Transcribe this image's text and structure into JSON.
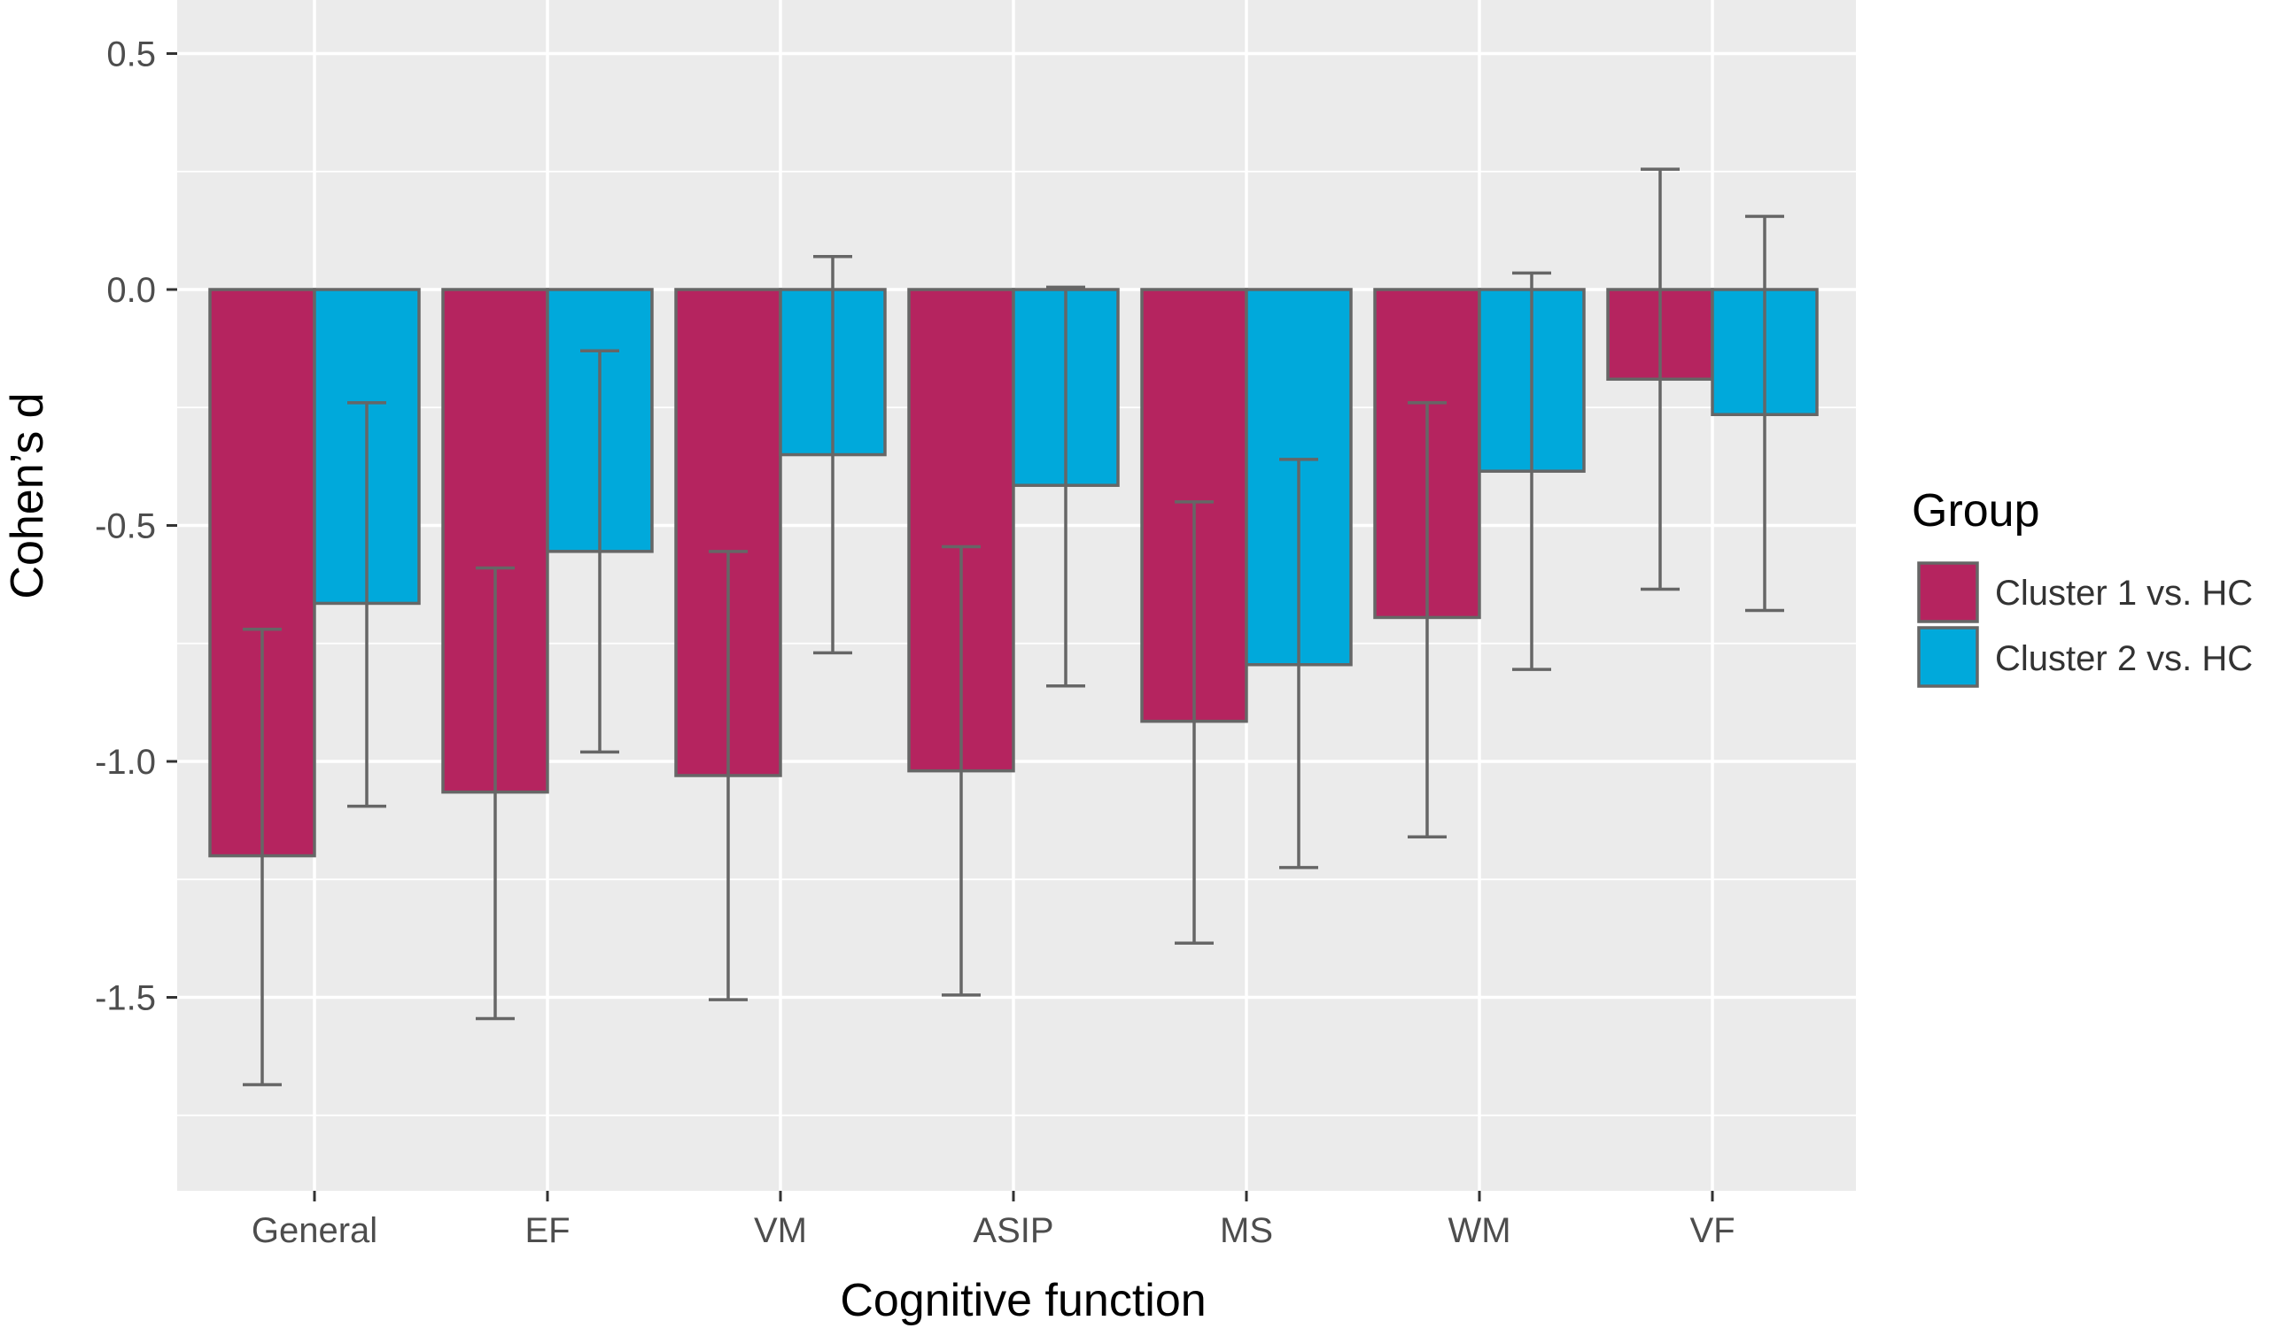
{
  "chart_data": {
    "type": "bar",
    "title": "",
    "xlabel": "Cognitive function",
    "ylabel": "Cohen’s d",
    "ylim": [
      -1.9,
      0.6
    ],
    "yticks": [
      0.5,
      0.0,
      -0.5,
      -1.0,
      -1.5
    ],
    "ytick_labels": [
      "0.5",
      "0.0",
      "-0.5",
      "-1.0",
      "-1.5"
    ],
    "grid": true,
    "categories": [
      "General",
      "EF",
      "VM",
      "ASIP",
      "MS",
      "WM",
      "VF"
    ],
    "series": [
      {
        "name": "Cluster 1 vs. HC",
        "color": "#B5245F",
        "values": [
          -1.2,
          -1.065,
          -1.03,
          -1.02,
          -0.915,
          -0.695,
          -0.19
        ],
        "ci_lower": [
          -1.685,
          -1.545,
          -1.505,
          -1.495,
          -1.385,
          -1.16,
          -0.635
        ],
        "ci_upper": [
          -0.72,
          -0.59,
          -0.555,
          -0.545,
          -0.45,
          -0.24,
          0.255
        ]
      },
      {
        "name": "Cluster 2 vs. HC",
        "color": "#00A9DB",
        "values": [
          -0.665,
          -0.555,
          -0.35,
          -0.415,
          -0.795,
          -0.385,
          -0.265
        ],
        "ci_lower": [
          -1.095,
          -0.98,
          -0.77,
          -0.84,
          -1.225,
          -0.805,
          -0.68
        ],
        "ci_upper": [
          -0.24,
          -0.13,
          0.07,
          0.005,
          -0.36,
          0.035,
          0.155
        ]
      }
    ],
    "legend": {
      "title": "Group",
      "position": "right"
    },
    "colors": {
      "panel_background": "#EBEBEB",
      "grid": "#FFFFFF",
      "bar_outline": "#666666",
      "error_bar": "#666666"
    }
  }
}
